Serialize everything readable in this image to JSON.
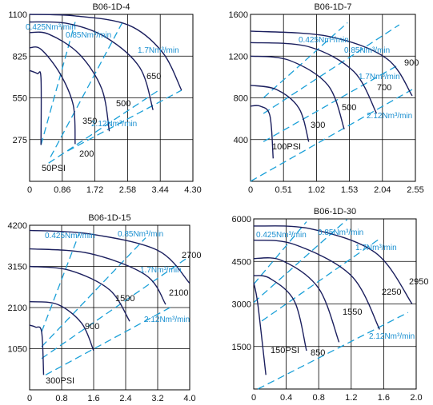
{
  "chart_data": [
    {
      "type": "line",
      "title": "B06-1D-4",
      "xlabel": "",
      "ylabel": "",
      "xlim": [
        0,
        4.3
      ],
      "ylim": [
        0,
        1100
      ],
      "x_ticks": [
        "0",
        "0.86",
        "1.72",
        "2.58",
        "3.44",
        "4.30"
      ],
      "y_ticks": [
        "275",
        "550",
        "825",
        "1100"
      ],
      "grid": true,
      "series": [
        {
          "name": "50PSI",
          "points": [
            [
              0.3,
              240
            ],
            [
              0.3,
              680
            ],
            [
              0.2,
              710
            ],
            [
              0,
              730
            ]
          ]
        },
        {
          "name": "200",
          "points": [
            [
              1.2,
              245
            ],
            [
              1.15,
              500
            ],
            [
              0.8,
              710
            ],
            [
              0.3,
              870
            ],
            [
              0,
              880
            ]
          ]
        },
        {
          "name": "350",
          "points": [
            [
              2.1,
              330
            ],
            [
              1.9,
              610
            ],
            [
              1.3,
              840
            ],
            [
              0.5,
              970
            ],
            [
              0,
              980
            ]
          ]
        },
        {
          "name": "500",
          "points": [
            [
              3.25,
              470
            ],
            [
              2.9,
              750
            ],
            [
              2,
              950
            ],
            [
              1,
              1040
            ],
            [
              0,
              1050
            ]
          ]
        },
        {
          "name": "650",
          "points": [
            [
              4.0,
              600
            ],
            [
              3.5,
              850
            ],
            [
              2.6,
              1030
            ],
            [
              1.2,
              1090
            ],
            [
              0,
              1100
            ]
          ]
        }
      ],
      "flow_lines": [
        {
          "name": "0.425Nm³/min",
          "points": [
            [
              0.3,
              240
            ],
            [
              1.2,
              1050
            ]
          ]
        },
        {
          "name": "0.85Nm³/min",
          "points": [
            [
              0.55,
              160
            ],
            [
              2.45,
              1050
            ]
          ]
        },
        {
          "name": "1.7Nm³/min",
          "points": [
            [
              1,
              200
            ],
            [
              4,
              600
            ]
          ]
        },
        {
          "name": "2.12Nm³/min",
          "points": [
            [
              0.5,
              120
            ],
            [
              3.4,
              600
            ]
          ]
        }
      ],
      "curve_labels": [
        "50PSI",
        "200",
        "350",
        "500",
        "650"
      ],
      "flow_labels": [
        "0.425Nm³/min",
        "0.85Nm³/min",
        "1.7Nm³/min",
        "2.12Nm³/min"
      ]
    },
    {
      "type": "line",
      "title": "B06-1D-7",
      "xlabel": "",
      "ylabel": "",
      "xlim": [
        0,
        2.55
      ],
      "ylim": [
        0,
        1600
      ],
      "x_ticks": [
        "0",
        "0.51",
        "1.02",
        "1.53",
        "2.04",
        "2.55"
      ],
      "y_ticks": [
        "400",
        "800",
        "1200",
        "1600"
      ],
      "grid": true,
      "series": [
        {
          "name": "100PSI",
          "points": [
            [
              0.35,
              220
            ],
            [
              0.3,
              630
            ],
            [
              0.15,
              720
            ],
            [
              0,
              720
            ]
          ]
        },
        {
          "name": "300",
          "points": [
            [
              0.9,
              380
            ],
            [
              0.75,
              700
            ],
            [
              0.4,
              880
            ],
            [
              0,
              920
            ]
          ]
        },
        {
          "name": "500",
          "points": [
            [
              1.45,
              500
            ],
            [
              1.2,
              920
            ],
            [
              0.6,
              1160
            ],
            [
              0,
              1200
            ]
          ]
        },
        {
          "name": "700",
          "points": [
            [
              1.95,
              650
            ],
            [
              1.6,
              1050
            ],
            [
              0.9,
              1290
            ],
            [
              0,
              1330
            ]
          ]
        },
        {
          "name": "900",
          "points": [
            [
              2.5,
              820
            ],
            [
              2.1,
              1180
            ],
            [
              1.2,
              1390
            ],
            [
              0,
              1440
            ]
          ]
        }
      ],
      "flow_lines": [
        {
          "name": "0.425Nm³/min",
          "points": [
            [
              0.2,
              800
            ],
            [
              1.5,
              1520
            ]
          ]
        },
        {
          "name": "0.85Nm³/min",
          "points": [
            [
              0.2,
              650
            ],
            [
              2.3,
              1500
            ]
          ]
        },
        {
          "name": "1.7Nm³/min",
          "points": [
            [
              0.2,
              380
            ],
            [
              2.3,
              1120
            ]
          ]
        },
        {
          "name": "2.12Nm³/min",
          "points": [
            [
              0,
              0
            ],
            [
              2.5,
              880
            ]
          ]
        }
      ],
      "curve_labels": [
        "100PSI",
        "300",
        "500",
        "700",
        "900"
      ],
      "flow_labels": [
        "0.425Nm³/min",
        "0.85Nm³/min",
        "1.7Nm³/min",
        "2.12Nm³/min"
      ]
    },
    {
      "type": "line",
      "title": "B06-1D-15",
      "xlabel": "",
      "ylabel": "",
      "xlim": [
        0,
        4.0
      ],
      "ylim": [
        0,
        4200
      ],
      "x_ticks": [
        "0",
        "0.8",
        "1.6",
        "2.4",
        "3.2",
        "4.0"
      ],
      "y_ticks": [
        "1050",
        "2100",
        "3150",
        "4200"
      ],
      "grid": true,
      "series": [
        {
          "name": "300PSI",
          "points": [
            [
              0.35,
              380
            ],
            [
              0.3,
              1480
            ],
            [
              0.15,
              1600
            ],
            [
              0,
              1650
            ]
          ]
        },
        {
          "name": "900",
          "points": [
            [
              1.6,
              1000
            ],
            [
              1.3,
              1700
            ],
            [
              0.7,
              2180
            ],
            [
              0,
              2250
            ]
          ]
        },
        {
          "name": "1500",
          "points": [
            [
              2.5,
              1750
            ],
            [
              2,
              2550
            ],
            [
              1,
              3050
            ],
            [
              0,
              3150
            ]
          ]
        },
        {
          "name": "2100",
          "points": [
            [
              3.4,
              2180
            ],
            [
              2.9,
              2930
            ],
            [
              1.5,
              3480
            ],
            [
              0,
              3600
            ]
          ]
        },
        {
          "name": "2700",
          "points": [
            [
              4,
              2720
            ],
            [
              3.2,
              3560
            ],
            [
              1.5,
              3980
            ],
            [
              0,
              4070
            ]
          ]
        }
      ],
      "flow_lines": [
        {
          "name": "0.425Nm³/min",
          "points": [
            [
              0.3,
              1480
            ],
            [
              1.25,
              4020
            ]
          ]
        },
        {
          "name": "0.85Nm³/min",
          "points": [
            [
              0.3,
              1100
            ],
            [
              2.9,
              3880
            ]
          ]
        },
        {
          "name": "1.7Nm³/min",
          "points": [
            [
              0.3,
              800
            ],
            [
              3.9,
              3340
            ]
          ]
        },
        {
          "name": "2.12Nm³/min",
          "points": [
            [
              0.4,
              380
            ],
            [
              3.6,
              2150
            ]
          ]
        }
      ],
      "curve_labels": [
        "300PSI",
        "900",
        "1500",
        "2100",
        "2700"
      ],
      "flow_labels": [
        "0.425Nm³/min",
        "0.85Nm³/min",
        "1.7Nm³/min",
        "2.12Nm³/min"
      ]
    },
    {
      "type": "line",
      "title": "B06-1D-30",
      "xlabel": "",
      "ylabel": "",
      "xlim": [
        0,
        2.0
      ],
      "ylim": [
        0,
        6000
      ],
      "x_ticks": [
        "0",
        "0.4",
        "0.8",
        "1.2",
        "1.6",
        "2.0"
      ],
      "y_ticks": [
        "1500",
        "3000",
        "4500",
        "6000"
      ],
      "grid": true,
      "series": [
        {
          "name": "150PSI",
          "points": [
            [
              0.15,
              500
            ],
            [
              0.05,
              3000
            ],
            [
              0,
              3750
            ]
          ]
        },
        {
          "name": "850",
          "points": [
            [
              0.65,
              1350
            ],
            [
              0.5,
              3100
            ],
            [
              0.2,
              3900
            ],
            [
              0,
              4000
            ]
          ]
        },
        {
          "name": "1550",
          "points": [
            [
              1.05,
              1650
            ],
            [
              0.8,
              3550
            ],
            [
              0.35,
              4530
            ],
            [
              0,
              4600
            ]
          ]
        },
        {
          "name": "2250",
          "points": [
            [
              1.55,
              2100
            ],
            [
              1.2,
              4000
            ],
            [
              0.5,
              5100
            ],
            [
              0,
              5250
            ]
          ]
        },
        {
          "name": "2950",
          "points": [
            [
              1.95,
              3000
            ],
            [
              1.5,
              4800
            ],
            [
              0.7,
              5650
            ],
            [
              0,
              5750
            ]
          ]
        }
      ],
      "flow_lines": [
        {
          "name": "0.425Nm³/min",
          "points": [
            [
              0,
              3700
            ],
            [
              0.65,
              5900
            ]
          ]
        },
        {
          "name": "0.85Nm³/min",
          "points": [
            [
              0,
              3050
            ],
            [
              1.15,
              5980
            ]
          ]
        },
        {
          "name": "1.7Nm³/min",
          "points": [
            [
              0.1,
              2400
            ],
            [
              1.55,
              5300
            ]
          ]
        },
        {
          "name": "2.12Nm³/min",
          "points": [
            [
              0.05,
              0
            ],
            [
              1.9,
              2700
            ]
          ]
        }
      ],
      "curve_labels": [
        "150PSI",
        "850",
        "1550",
        "2250",
        "2950"
      ],
      "flow_labels": [
        "0.425Nm³/min",
        "0.85Nm³/min",
        "1.7Nm³/min",
        "2.12Nm³/min"
      ]
    }
  ],
  "colors": {
    "curve": "#1b1f5e",
    "flow_line": "#1aa0d8",
    "flow_label": "#1a8fd0",
    "axis": "#000000",
    "grid": "#000000",
    "text": "#111111"
  }
}
